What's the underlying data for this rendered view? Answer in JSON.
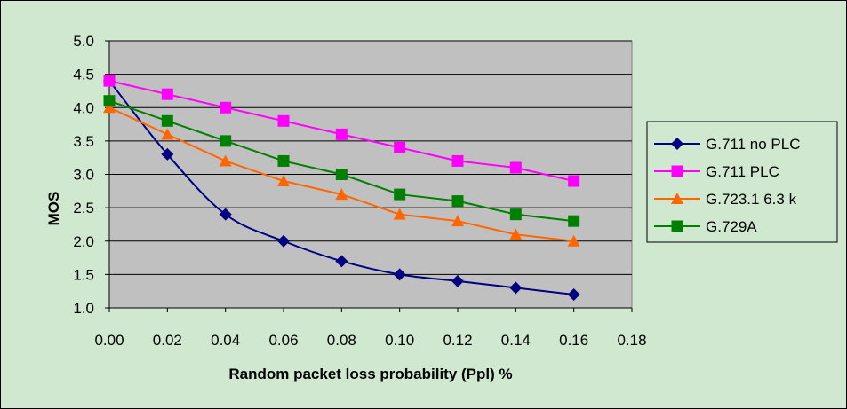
{
  "chart_data": {
    "type": "line",
    "title": "",
    "xlabel": "Random packet loss probability (Ppl) %",
    "ylabel": "MOS",
    "x": [
      0.0,
      0.02,
      0.04,
      0.06,
      0.08,
      0.1,
      0.12,
      0.14,
      0.16
    ],
    "xlim": [
      0,
      0.18
    ],
    "ylim": [
      1.0,
      5.0
    ],
    "x_ticks": [
      "0.00",
      "0.02",
      "0.04",
      "0.06",
      "0.08",
      "0.10",
      "0.12",
      "0.14",
      "0.16",
      "0.18"
    ],
    "y_ticks": [
      "1.0",
      "1.5",
      "2.0",
      "2.5",
      "3.0",
      "3.5",
      "4.0",
      "4.5",
      "5.0"
    ],
    "grid": "horizontal",
    "legend_position": "right",
    "series": [
      {
        "name": "G.711 no PLC",
        "color": "#000080",
        "marker": "diamond",
        "smooth": true,
        "values": [
          4.4,
          3.3,
          2.4,
          2.0,
          1.7,
          1.5,
          1.4,
          1.3,
          1.2
        ]
      },
      {
        "name": "G.711 PLC",
        "color": "#ff00ff",
        "marker": "square",
        "values": [
          4.4,
          4.2,
          4.0,
          3.8,
          3.6,
          3.4,
          3.2,
          3.1,
          2.9
        ]
      },
      {
        "name": "G.723.1 6.3 k",
        "color": "#ff6600",
        "marker": "triangle",
        "values": [
          4.0,
          3.6,
          3.2,
          2.9,
          2.7,
          2.4,
          2.3,
          2.1,
          2.0
        ]
      },
      {
        "name": "G.729A",
        "color": "#008000",
        "marker": "square",
        "values": [
          4.1,
          3.8,
          3.5,
          3.2,
          3.0,
          2.7,
          2.6,
          2.4,
          2.3
        ]
      }
    ]
  }
}
